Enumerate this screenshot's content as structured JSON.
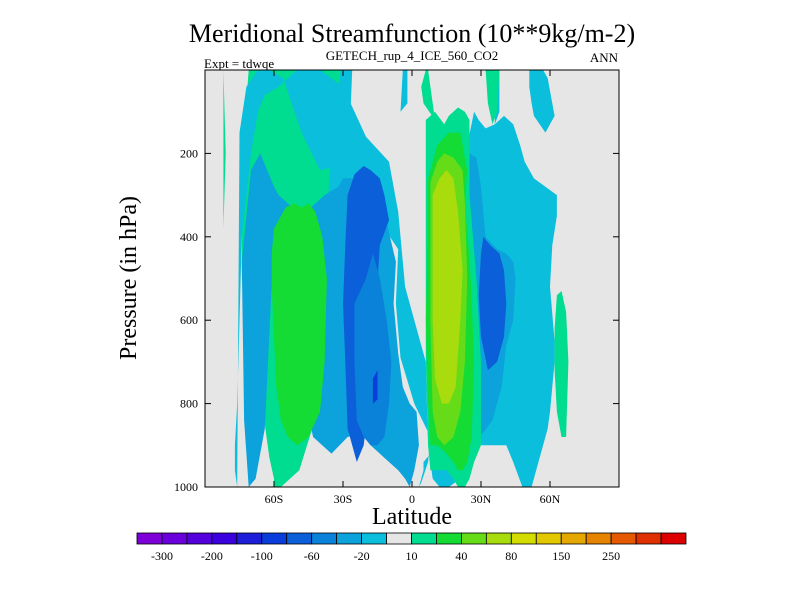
{
  "chart_data": {
    "type": "contour",
    "title": "Meridional Streamfunction (10**9kg/m-2)",
    "subtitle": "GETECH_rup_4_ICE_560_CO2",
    "left_annotation": "Expt = tdwqe",
    "right_annotation": "ANN",
    "xlabel": "Latitude",
    "ylabel": "Pressure (in hPa)",
    "xlim": [
      -90,
      90
    ],
    "ylim": [
      0,
      1000
    ],
    "y_inverted": true,
    "x_ticks": [
      {
        "value": -60,
        "label": "60S"
      },
      {
        "value": -30,
        "label": "30S"
      },
      {
        "value": 0,
        "label": "0"
      },
      {
        "value": 30,
        "label": "30N"
      },
      {
        "value": 60,
        "label": "60N"
      }
    ],
    "y_ticks": [
      {
        "value": 200,
        "label": "200"
      },
      {
        "value": 400,
        "label": "400"
      },
      {
        "value": 600,
        "label": "600"
      },
      {
        "value": 800,
        "label": "800"
      },
      {
        "value": 1000,
        "label": "1000"
      }
    ],
    "background_color": "#e6e6e6",
    "colorbar": {
      "colors": [
        "#7d00d9",
        "#6a00dc",
        "#5400dd",
        "#3a00dd",
        "#1c1ed9",
        "#0a3ddc",
        "#0b5fd9",
        "#0a82da",
        "#0ca2db",
        "#0bbfdc",
        "#e6e6e6",
        "#00dc90",
        "#14dc34",
        "#66dc18",
        "#a8dc0c",
        "#d2dc00",
        "#e2c800",
        "#e5a800",
        "#e68400",
        "#e55a00",
        "#e13000",
        "#dd0000"
      ],
      "labels": [
        "-300",
        "-200",
        "-100",
        "-60",
        "-20",
        "10",
        "40",
        "80",
        "150",
        "250"
      ]
    },
    "regions": [
      {
        "color": "#00dc90",
        "lat": [
          -82,
          -81,
          -82
        ],
        "p": [
          0,
          200,
          380
        ]
      },
      {
        "color": "#00dc90",
        "lat": [
          -71,
          -62,
          -54,
          -45,
          -38,
          -30,
          -27,
          -28,
          -31,
          -35,
          -40,
          -49,
          -57,
          -60,
          -60,
          -62,
          -64,
          -70,
          -73,
          -74,
          -74,
          -73,
          -71
        ],
        "p": [
          0,
          0,
          0,
          0,
          0,
          0,
          80,
          200,
          400,
          600,
          800,
          960,
          1000,
          1000,
          980,
          930,
          850,
          720,
          600,
          480,
          300,
          150,
          0
        ]
      },
      {
        "color": "#0bbfdc",
        "lat": [
          -75,
          -72,
          -67,
          -62,
          -56,
          -48,
          -40,
          -31,
          -27,
          -26,
          -31,
          -35,
          -37,
          -30,
          -23,
          -12,
          -6,
          -7,
          -5,
          1,
          8,
          7,
          4,
          3,
          4,
          5,
          5,
          8,
          12,
          20,
          24,
          27,
          33,
          41,
          44,
          48,
          52,
          54,
          59,
          60,
          61,
          62,
          62,
          60,
          61,
          63,
          63,
          58,
          53,
          49,
          47,
          44,
          40,
          36,
          32,
          29,
          27,
          24,
          22,
          21,
          25,
          29,
          30,
          26,
          21,
          16,
          12,
          9,
          7,
          6,
          0,
          -3,
          -4,
          -5,
          -6,
          -10,
          -20,
          -30,
          -40,
          -50,
          -58,
          -64,
          -67,
          -70,
          -72,
          -74,
          -75,
          -76,
          -77,
          -77,
          -76,
          -75
        ],
        "p": [
          150,
          40,
          0,
          0,
          20,
          150,
          240,
          230,
          140,
          0,
          0,
          200,
          340,
          380,
          380,
          380,
          430,
          560,
          690,
          800,
          880,
          940,
          990,
          1000,
          980,
          960,
          940,
          920,
          880,
          880,
          880,
          900,
          900,
          900,
          940,
          1000,
          1000,
          960,
          860,
          820,
          760,
          700,
          650,
          520,
          420,
          350,
          300,
          280,
          260,
          220,
          180,
          130,
          110,
          130,
          140,
          120,
          100,
          180,
          240,
          280,
          500,
          640,
          860,
          940,
          980,
          1000,
          1000,
          980,
          900,
          700,
          580,
          520,
          460,
          400,
          340,
          220,
          160,
          40,
          0,
          0,
          40,
          60,
          100,
          200,
          300,
          400,
          600,
          800,
          900,
          960,
          1000,
          150
        ]
      },
      {
        "color": "#0ca2db",
        "lat": [
          -74,
          -70,
          -66,
          -63,
          -60,
          -58,
          -52,
          -44,
          -38,
          -32,
          -30,
          -26,
          -23,
          -21,
          -18,
          -13,
          -7,
          -8,
          -6,
          -4,
          -1,
          2,
          3,
          1,
          -1,
          -3,
          -6,
          -10,
          -14,
          -18,
          -22,
          -28,
          -35,
          -43,
          -50,
          -55,
          -58,
          -60,
          -64,
          -68,
          -71,
          -73
        ],
        "p": [
          460,
          240,
          200,
          240,
          280,
          300,
          330,
          330,
          300,
          280,
          260,
          260,
          260,
          260,
          270,
          320,
          460,
          560,
          680,
          760,
          800,
          820,
          900,
          960,
          1000,
          980,
          960,
          940,
          920,
          900,
          870,
          880,
          920,
          880,
          700,
          500,
          430,
          400,
          860,
          980,
          1000,
          840
        ]
      },
      {
        "color": "#0ca2db",
        "lat": [
          25,
          28,
          30,
          32,
          37,
          41,
          44,
          45,
          44,
          41,
          39,
          35,
          31,
          28,
          26,
          25
        ],
        "p": [
          200,
          210,
          280,
          400,
          430,
          440,
          460,
          500,
          600,
          660,
          760,
          840,
          870,
          880,
          700,
          500
        ]
      },
      {
        "color": "#0b5fd9",
        "lat": [
          -28,
          -25,
          -21,
          -18,
          -14,
          -12,
          -10,
          -14,
          -16,
          -18,
          -21,
          -24,
          -26,
          -28,
          -29,
          -30,
          -29
        ],
        "p": [
          300,
          250,
          230,
          240,
          260,
          300,
          360,
          420,
          600,
          760,
          900,
          940,
          900,
          860,
          700,
          560,
          420
        ]
      },
      {
        "color": "#0a82da",
        "lat": [
          -25,
          -20,
          -17,
          -14,
          -11,
          -9,
          -10,
          -12,
          -15,
          -18,
          -21,
          -24,
          -25
        ],
        "p": [
          560,
          500,
          440,
          500,
          600,
          700,
          800,
          880,
          900,
          900,
          880,
          840,
          700
        ]
      },
      {
        "color": "#0b5fd9",
        "lat": [
          31,
          34,
          38,
          40,
          41,
          40,
          37,
          33,
          30,
          29,
          30
        ],
        "p": [
          400,
          420,
          440,
          480,
          560,
          640,
          700,
          720,
          640,
          540,
          440
        ]
      },
      {
        "color": "#0a3ddc",
        "lat": [
          -17,
          -15,
          -15,
          -17
        ],
        "p": [
          740,
          720,
          790,
          800
        ]
      },
      {
        "color": "#0bbfdc",
        "lat": [
          -4,
          -2,
          -2,
          -5
        ],
        "p": [
          0,
          0,
          80,
          100
        ]
      },
      {
        "color": "#0bbfdc",
        "lat": [
          36,
          38,
          38,
          36
        ],
        "p": [
          0,
          0,
          100,
          130
        ]
      },
      {
        "color": "#0bbfdc",
        "lat": [
          51,
          53,
          55,
          57,
          59,
          61,
          62,
          58,
          53,
          52,
          51
        ],
        "p": [
          0,
          0,
          0,
          0,
          20,
          80,
          110,
          150,
          110,
          80,
          40
        ]
      },
      {
        "color": "#00dc90",
        "lat": [
          6,
          10,
          14,
          16,
          20,
          23,
          25,
          25,
          28,
          29,
          30,
          30,
          27,
          25,
          23,
          20,
          18,
          15,
          13,
          10,
          8,
          7,
          6,
          6
        ],
        "p": [
          120,
          100,
          130,
          110,
          90,
          100,
          120,
          300,
          500,
          600,
          700,
          900,
          940,
          980,
          1000,
          1000,
          980,
          960,
          960,
          960,
          960,
          900,
          700,
          500
        ]
      },
      {
        "color": "#14dc34",
        "lat": [
          7,
          11,
          16,
          21,
          24,
          23,
          25,
          26,
          27,
          26,
          24,
          22,
          20,
          18,
          15,
          11,
          8,
          7,
          6,
          7
        ],
        "p": [
          260,
          180,
          150,
          150,
          240,
          320,
          450,
          560,
          700,
          880,
          940,
          960,
          960,
          940,
          920,
          900,
          900,
          800,
          600,
          400
        ]
      },
      {
        "color": "#66dc18",
        "lat": [
          8,
          11,
          14,
          18,
          22,
          23,
          24,
          23,
          21,
          18,
          14,
          11,
          9,
          8
        ],
        "p": [
          270,
          220,
          200,
          210,
          240,
          320,
          500,
          700,
          820,
          880,
          900,
          880,
          820,
          600
        ]
      },
      {
        "color": "#a8dc0c",
        "lat": [
          9,
          12,
          15,
          18,
          20,
          22,
          21,
          19,
          16,
          13,
          10,
          9
        ],
        "p": [
          300,
          260,
          240,
          260,
          340,
          480,
          600,
          760,
          800,
          800,
          740,
          600
        ]
      },
      {
        "color": "#14dc34",
        "lat": [
          -60,
          -55,
          -51,
          -48,
          -45,
          -42,
          -39,
          -37,
          -38,
          -40,
          -45,
          -50,
          -54,
          -57,
          -59,
          -60,
          -61,
          -61
        ],
        "p": [
          380,
          330,
          320,
          330,
          320,
          340,
          400,
          500,
          700,
          820,
          880,
          900,
          880,
          840,
          760,
          640,
          520,
          440
        ]
      },
      {
        "color": "#00dc90",
        "lat": [
          6,
          7,
          9,
          10,
          5,
          4
        ],
        "p": [
          0,
          0,
          80,
          120,
          80,
          40
        ]
      },
      {
        "color": "#00dc90",
        "lat": [
          32,
          34,
          38,
          37,
          35,
          33
        ],
        "p": [
          0,
          0,
          0,
          100,
          130,
          80
        ]
      },
      {
        "color": "#00dc90",
        "lat": [
          63,
          65,
          67,
          68,
          67,
          65,
          63,
          62,
          62
        ],
        "p": [
          540,
          530,
          580,
          700,
          880,
          880,
          820,
          720,
          620
        ]
      }
    ]
  }
}
